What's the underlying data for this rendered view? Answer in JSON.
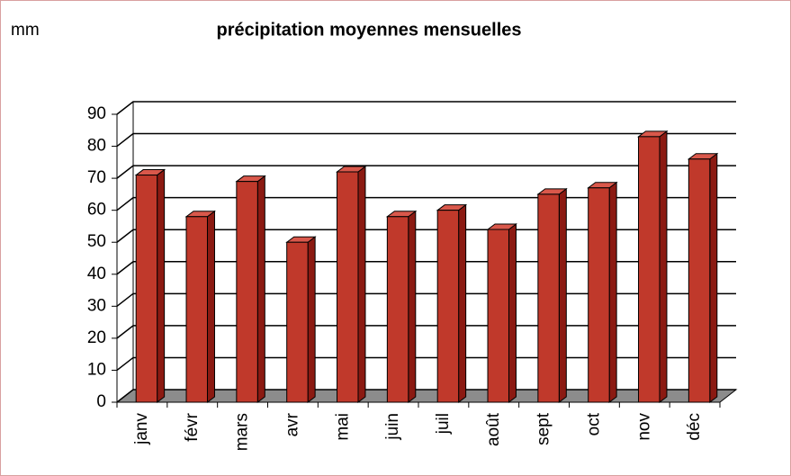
{
  "chart_data": {
    "type": "bar",
    "title": "précipitation moyennes mensuelles",
    "y_label": "mm",
    "categories": [
      "janv",
      "févr",
      "mars",
      "avr",
      "mai",
      "juin",
      "juil",
      "août",
      "sept",
      "oct",
      "nov",
      "déc"
    ],
    "values": [
      71,
      58,
      69,
      50,
      72,
      58,
      60,
      54,
      65,
      67,
      83,
      76
    ],
    "color": "#c0392b",
    "ylim": [
      0,
      90
    ],
    "yticks": [
      0,
      10,
      20,
      30,
      40,
      50,
      60,
      70,
      80,
      90
    ],
    "grid": true
  }
}
